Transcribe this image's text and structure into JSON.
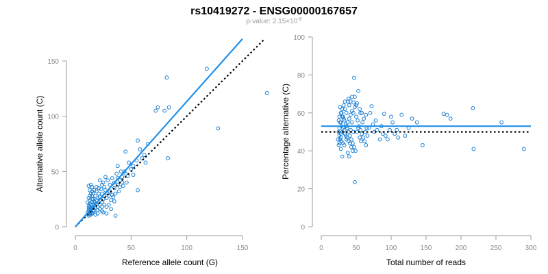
{
  "title": "rs10419272 - ENSG00000167657",
  "subtitle": {
    "prefix": "p-value: 2.15×10",
    "exponent": "-8"
  },
  "colors": {
    "points": "#1a7fd4",
    "fit": "#1f8fe8",
    "reference": "#000000"
  },
  "chart_data": [
    {
      "type": "scatter",
      "xlabel": "Reference allele count (G)",
      "ylabel": "Alternative allele count (C)",
      "xlim": [
        0,
        150
      ],
      "ylim": [
        0,
        150
      ],
      "xticks": [
        0,
        50,
        100,
        150
      ],
      "yticks": [
        0,
        50,
        100,
        150
      ],
      "fit_line": {
        "x": [
          0,
          150
        ],
        "y": [
          0,
          170
        ]
      },
      "reference_line": {
        "x": [
          0,
          170
        ],
        "y": [
          0,
          170
        ]
      },
      "points": [
        [
          12,
          10
        ],
        [
          13,
          11
        ],
        [
          12,
          12
        ],
        [
          14,
          13
        ],
        [
          15,
          12
        ],
        [
          13,
          14
        ],
        [
          12,
          15
        ],
        [
          14,
          16
        ],
        [
          16,
          14
        ],
        [
          15,
          17
        ],
        [
          13,
          18
        ],
        [
          12,
          19
        ],
        [
          14,
          20
        ],
        [
          16,
          18
        ],
        [
          17,
          15
        ],
        [
          13,
          21
        ],
        [
          15,
          22
        ],
        [
          12,
          17
        ],
        [
          11,
          13
        ],
        [
          14,
          11
        ],
        [
          13,
          24
        ],
        [
          15,
          25
        ],
        [
          17,
          23
        ],
        [
          19,
          24
        ],
        [
          18,
          20
        ],
        [
          20,
          18
        ],
        [
          21,
          22
        ],
        [
          22,
          20
        ],
        [
          24,
          22
        ],
        [
          20,
          26
        ],
        [
          22,
          27
        ],
        [
          25,
          25
        ],
        [
          26,
          28
        ],
        [
          24,
          30
        ],
        [
          28,
          26
        ],
        [
          30,
          28
        ],
        [
          29,
          30
        ],
        [
          31,
          32
        ],
        [
          33,
          29
        ],
        [
          27,
          33
        ],
        [
          23,
          34
        ],
        [
          19,
          36
        ],
        [
          17,
          33
        ],
        [
          15,
          36
        ],
        [
          14,
          38
        ],
        [
          12,
          37
        ],
        [
          16,
          30
        ],
        [
          18,
          28
        ],
        [
          21,
          30
        ],
        [
          26,
          20
        ],
        [
          28,
          18
        ],
        [
          24,
          14
        ],
        [
          22,
          16
        ],
        [
          20,
          12
        ],
        [
          18,
          11
        ],
        [
          25,
          13
        ],
        [
          30,
          20
        ],
        [
          32,
          24
        ],
        [
          34,
          27
        ],
        [
          36,
          30
        ],
        [
          35,
          35
        ],
        [
          38,
          38
        ],
        [
          40,
          42
        ],
        [
          42,
          45
        ],
        [
          38,
          44
        ],
        [
          45,
          48
        ],
        [
          47,
          46
        ],
        [
          44,
          50
        ],
        [
          50,
          52
        ],
        [
          52,
          55
        ],
        [
          48,
          58
        ],
        [
          55,
          60
        ],
        [
          56,
          33
        ],
        [
          60,
          62
        ],
        [
          63,
          58
        ],
        [
          62,
          65
        ],
        [
          58,
          70
        ],
        [
          65,
          75
        ],
        [
          72,
          105
        ],
        [
          74,
          108
        ],
        [
          80,
          105
        ],
        [
          84,
          108
        ],
        [
          82,
          135
        ],
        [
          83,
          62
        ],
        [
          118,
          143
        ],
        [
          128,
          89
        ],
        [
          172,
          121
        ],
        [
          38,
          55
        ],
        [
          45,
          68
        ],
        [
          56,
          78
        ],
        [
          36,
          10
        ],
        [
          40,
          36
        ],
        [
          42,
          40
        ],
        [
          31,
          38
        ],
        [
          35,
          40
        ],
        [
          29,
          42
        ],
        [
          26,
          36
        ],
        [
          24,
          38
        ],
        [
          21,
          35
        ],
        [
          19,
          32
        ],
        [
          17,
          22
        ],
        [
          16,
          25
        ],
        [
          15,
          28
        ],
        [
          14,
          30
        ],
        [
          13,
          33
        ],
        [
          12,
          26
        ],
        [
          11,
          22
        ],
        [
          13,
          28
        ],
        [
          15,
          32
        ],
        [
          25,
          40
        ],
        [
          27,
          45
        ],
        [
          22,
          42
        ],
        [
          33,
          44
        ],
        [
          37,
          48
        ],
        [
          41,
          50
        ],
        [
          52,
          47
        ],
        [
          46,
          40
        ],
        [
          43,
          37
        ],
        [
          39,
          32
        ],
        [
          35,
          23
        ],
        [
          32,
          16
        ],
        [
          28,
          12
        ],
        [
          24,
          18
        ],
        [
          20,
          15
        ],
        [
          18,
          17
        ]
      ]
    },
    {
      "type": "scatter",
      "xlabel": "Total number of reads",
      "ylabel": "Percentage alternative (C)",
      "xlim": [
        0,
        300
      ],
      "ylim": [
        0,
        100
      ],
      "xticks": [
        0,
        50,
        100,
        150,
        200,
        250,
        300
      ],
      "yticks": [
        0,
        20,
        40,
        60,
        80,
        100
      ],
      "fit_line": {
        "x": [
          0,
          300
        ],
        "y": [
          53,
          53
        ]
      },
      "reference_line": {
        "x": [
          0,
          300
        ],
        "y": [
          50,
          50
        ]
      },
      "points": [
        [
          47,
          78.5
        ],
        [
          53,
          71.5
        ],
        [
          44,
          68.5
        ],
        [
          48,
          68.5
        ],
        [
          39,
          67.5
        ],
        [
          34,
          66
        ],
        [
          46,
          65.5
        ],
        [
          51,
          65
        ],
        [
          55,
          62
        ],
        [
          72,
          63.5
        ],
        [
          58,
          60
        ],
        [
          64,
          59
        ],
        [
          70,
          60
        ],
        [
          90,
          59.5
        ],
        [
          115,
          59
        ],
        [
          130,
          57
        ],
        [
          137,
          55
        ],
        [
          175,
          59.5
        ],
        [
          180,
          59
        ],
        [
          185,
          57
        ],
        [
          217,
          62.5
        ],
        [
          258,
          55
        ],
        [
          26,
          58
        ],
        [
          28,
          60
        ],
        [
          30,
          62
        ],
        [
          32,
          57
        ],
        [
          27,
          55
        ],
        [
          29,
          53
        ],
        [
          31,
          52
        ],
        [
          33,
          51
        ],
        [
          28,
          49
        ],
        [
          26,
          48
        ],
        [
          25,
          50
        ],
        [
          27,
          46
        ],
        [
          29,
          45
        ],
        [
          31,
          44
        ],
        [
          33,
          43
        ],
        [
          35,
          48
        ],
        [
          37,
          47
        ],
        [
          39,
          45
        ],
        [
          41,
          44
        ],
        [
          43,
          42
        ],
        [
          45,
          40
        ],
        [
          40,
          37
        ],
        [
          38,
          39
        ],
        [
          30,
          37
        ],
        [
          28,
          41
        ],
        [
          26,
          44
        ],
        [
          36,
          53
        ],
        [
          38,
          55
        ],
        [
          40,
          57
        ],
        [
          42,
          59
        ],
        [
          44,
          61
        ],
        [
          46,
          60
        ],
        [
          48,
          63
        ],
        [
          50,
          58
        ],
        [
          52,
          56
        ],
        [
          54,
          53
        ],
        [
          56,
          51
        ],
        [
          58,
          49
        ],
        [
          60,
          47
        ],
        [
          62,
          45
        ],
        [
          64,
          43
        ],
        [
          66,
          48
        ],
        [
          68,
          52
        ],
        [
          74,
          54
        ],
        [
          76,
          50
        ],
        [
          80,
          51
        ],
        [
          84,
          46
        ],
        [
          88,
          49
        ],
        [
          95,
          46
        ],
        [
          98,
          51
        ],
        [
          105,
          49
        ],
        [
          110,
          47
        ],
        [
          120,
          48
        ],
        [
          125,
          52
        ],
        [
          145,
          43
        ],
        [
          218,
          41
        ],
        [
          290,
          41
        ],
        [
          48,
          23.5
        ],
        [
          36,
          60
        ],
        [
          34,
          62
        ],
        [
          32,
          64
        ],
        [
          30,
          58
        ],
        [
          28,
          55
        ],
        [
          26,
          52
        ],
        [
          25,
          56
        ],
        [
          27,
          63
        ],
        [
          29,
          60
        ],
        [
          31,
          58
        ],
        [
          33,
          56
        ],
        [
          35,
          54
        ],
        [
          37,
          52
        ],
        [
          39,
          50
        ],
        [
          41,
          48
        ],
        [
          43,
          46
        ],
        [
          45,
          44
        ],
        [
          47,
          42
        ],
        [
          49,
          40
        ],
        [
          51,
          50
        ],
        [
          53,
          52
        ],
        [
          55,
          47
        ],
        [
          57,
          45
        ],
        [
          59,
          55
        ],
        [
          61,
          57
        ],
        [
          63,
          50
        ],
        [
          65,
          52
        ],
        [
          24,
          46
        ],
        [
          25,
          43
        ],
        [
          28,
          47
        ],
        [
          30,
          50
        ],
        [
          34,
          49
        ],
        [
          36,
          46
        ],
        [
          42,
          51
        ],
        [
          44,
          55
        ],
        [
          46,
          50
        ],
        [
          40,
          64
        ],
        [
          38,
          66
        ],
        [
          42,
          66
        ],
        [
          50,
          64
        ],
        [
          56,
          60
        ],
        [
          78,
          56
        ],
        [
          86,
          53
        ],
        [
          92,
          48
        ],
        [
          100,
          58
        ],
        [
          102,
          55
        ],
        [
          108,
          51
        ]
      ]
    }
  ]
}
